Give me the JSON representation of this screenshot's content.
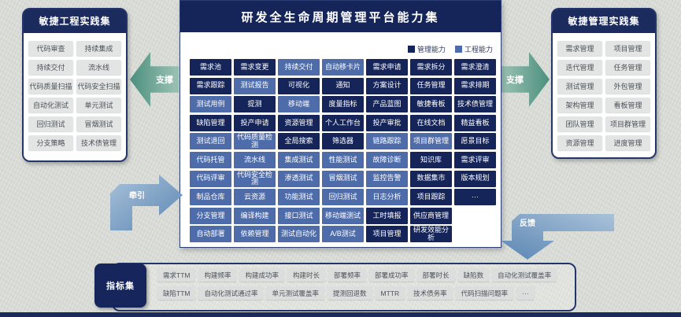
{
  "central": {
    "title": "研发全生命周期管理平台能力集",
    "legend": [
      {
        "label": "管理能力",
        "color": "#15255a",
        "type": "m"
      },
      {
        "label": "工程能力",
        "color": "#4e6ca9",
        "type": "e"
      }
    ],
    "grid": [
      [
        {
          "label": "需求池",
          "type": "m"
        },
        {
          "label": "需求变更",
          "type": "m"
        },
        {
          "label": "持续交付",
          "type": "e"
        },
        {
          "label": "自动移卡片",
          "type": "e"
        },
        {
          "label": "需求申请",
          "type": "m"
        },
        {
          "label": "需求拆分",
          "type": "m"
        },
        {
          "label": "需求澄清",
          "type": "m"
        }
      ],
      [
        {
          "label": "需求跟踪",
          "type": "m"
        },
        {
          "label": "测试报告",
          "type": "e"
        },
        {
          "label": "可视化",
          "type": "m"
        },
        {
          "label": "通知",
          "type": "m"
        },
        {
          "label": "方案设计",
          "type": "m"
        },
        {
          "label": "任务管理",
          "type": "m"
        },
        {
          "label": "需求排期",
          "type": "m"
        }
      ],
      [
        {
          "label": "测试用例",
          "type": "e"
        },
        {
          "label": "提测",
          "type": "m"
        },
        {
          "label": "移动端",
          "type": "e"
        },
        {
          "label": "度量指标",
          "type": "m"
        },
        {
          "label": "产品蓝图",
          "type": "m"
        },
        {
          "label": "敏捷看板",
          "type": "m"
        },
        {
          "label": "技术债管理",
          "type": "m"
        }
      ],
      [
        {
          "label": "缺陷管理",
          "type": "m"
        },
        {
          "label": "投产申请",
          "type": "m"
        },
        {
          "label": "资源管理",
          "type": "m"
        },
        {
          "label": "个人工作台",
          "type": "m"
        },
        {
          "label": "投产审批",
          "type": "m"
        },
        {
          "label": "在线文档",
          "type": "m"
        },
        {
          "label": "精益看板",
          "type": "m"
        }
      ],
      [
        {
          "label": "测试退回",
          "type": "e"
        },
        {
          "label": "代码质量检测",
          "type": "e"
        },
        {
          "label": "全局搜索",
          "type": "m"
        },
        {
          "label": "筛选器",
          "type": "m"
        },
        {
          "label": "链路跟踪",
          "type": "e"
        },
        {
          "label": "项目群管理",
          "type": "e"
        },
        {
          "label": "愿景目标",
          "type": "m"
        }
      ],
      [
        {
          "label": "代码托管",
          "type": "e"
        },
        {
          "label": "流水线",
          "type": "e"
        },
        {
          "label": "集成测试",
          "type": "e"
        },
        {
          "label": "性能测试",
          "type": "e"
        },
        {
          "label": "故障诊断",
          "type": "e"
        },
        {
          "label": "知识库",
          "type": "m"
        },
        {
          "label": "需求评审",
          "type": "m"
        }
      ],
      [
        {
          "label": "代码评审",
          "type": "e"
        },
        {
          "label": "代码安全检测",
          "type": "e"
        },
        {
          "label": "渗透测试",
          "type": "e"
        },
        {
          "label": "冒烟测试",
          "type": "e"
        },
        {
          "label": "监控告警",
          "type": "e"
        },
        {
          "label": "数据集市",
          "type": "m"
        },
        {
          "label": "版本规划",
          "type": "m"
        }
      ],
      [
        {
          "label": "制品仓库",
          "type": "e"
        },
        {
          "label": "云资源",
          "type": "e"
        },
        {
          "label": "功能测试",
          "type": "e"
        },
        {
          "label": "回归测试",
          "type": "e"
        },
        {
          "label": "日志分析",
          "type": "e"
        },
        {
          "label": "项目跟踪",
          "type": "m"
        },
        {
          "label": "···",
          "type": "m"
        }
      ],
      [
        {
          "label": "分支管理",
          "type": "e"
        },
        {
          "label": "编译构建",
          "type": "e"
        },
        {
          "label": "接口测试",
          "type": "e"
        },
        {
          "label": "移动端测试",
          "type": "e"
        },
        {
          "label": "工时填报",
          "type": "m"
        },
        {
          "label": "供应商管理",
          "type": "m"
        }
      ],
      [
        {
          "label": "自动部署",
          "type": "e"
        },
        {
          "label": "依赖管理",
          "type": "e"
        },
        {
          "label": "测试自动化",
          "type": "e"
        },
        {
          "label": "A/B测试",
          "type": "e"
        },
        {
          "label": "项目管理",
          "type": "m"
        },
        {
          "label": "研发效能分析",
          "type": "m"
        }
      ]
    ]
  },
  "left_panel": {
    "title": "敏捷工程实践集",
    "items": [
      "代码审查",
      "持续集成",
      "持续交付",
      "流水线",
      "代码质量扫描",
      "代码安全扫描",
      "自动化测试",
      "单元测试",
      "回归测试",
      "冒烟测试",
      "分支策略",
      "技术债管理"
    ]
  },
  "right_panel": {
    "title": "敏捷管理实践集",
    "items": [
      "需求管理",
      "项目管理",
      "迭代管理",
      "任务管理",
      "测试管理",
      "外包管理",
      "架构管理",
      "看板管理",
      "团队管理",
      "项目群管理",
      "资源管理",
      "进度管理"
    ]
  },
  "arrows": {
    "support_left": "支撑",
    "support_right": "支撑",
    "pull": "牵引",
    "feedback": "反馈"
  },
  "metrics": {
    "label": "指标集",
    "row1": [
      "需求TTM",
      "构建频率",
      "构建成功率",
      "构建时长",
      "部署频率",
      "部署成功率",
      "部署时长",
      "缺陷数",
      "自动化测试覆盖率"
    ],
    "row2": [
      "缺陷TTM",
      "自动化测试通过率",
      "单元测试覆盖率",
      "提测回退数",
      "MTTR",
      "技术债务率",
      "代码扫描问题率",
      "···"
    ]
  }
}
